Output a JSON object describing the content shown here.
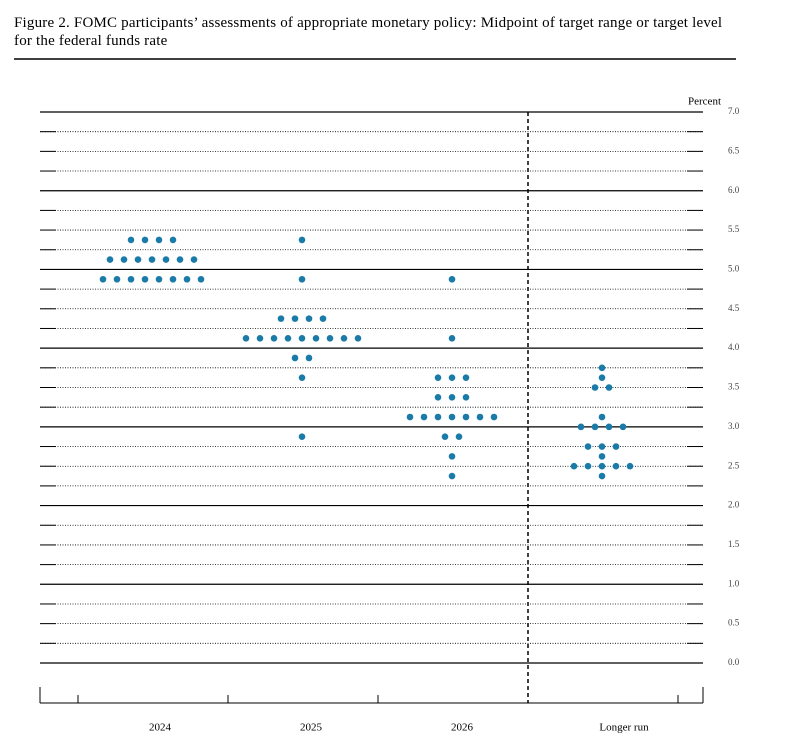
{
  "chart_data": {
    "type": "dotplot",
    "title": "Figure 2.  FOMC participants’ assessments of appropriate monetary policy: Midpoint of target range or target level for the federal funds rate",
    "y_label": "Percent",
    "categories": [
      "2024",
      "2025",
      "2026",
      "Longer run"
    ],
    "values": [
      [
        5.375,
        5.375,
        5.375,
        5.375,
        5.125,
        5.125,
        5.125,
        5.125,
        5.125,
        5.125,
        5.125,
        4.875,
        4.875,
        4.875,
        4.875,
        4.875,
        4.875,
        4.875,
        4.875
      ],
      [
        5.375,
        4.875,
        4.375,
        4.375,
        4.375,
        4.375,
        4.125,
        4.125,
        4.125,
        4.125,
        4.125,
        4.125,
        4.125,
        4.125,
        4.125,
        3.875,
        3.875,
        3.625,
        2.875
      ],
      [
        4.875,
        4.125,
        3.625,
        3.625,
        3.625,
        3.375,
        3.375,
        3.375,
        3.125,
        3.125,
        3.125,
        3.125,
        3.125,
        3.125,
        3.125,
        2.875,
        2.875,
        2.625,
        2.375
      ],
      [
        3.75,
        3.625,
        3.5,
        3.5,
        3.125,
        3.0,
        3.0,
        3.0,
        3.0,
        2.75,
        2.75,
        2.75,
        2.625,
        2.5,
        2.5,
        2.5,
        2.5,
        2.5,
        2.375
      ]
    ],
    "color": "#1a7aa8",
    "ylim": [
      0,
      7
    ],
    "yticks": [
      {
        "value": 0,
        "label": "0.0"
      },
      0.5,
      {
        "value": 1,
        "label": "1.0"
      },
      1.5,
      {
        "value": 2,
        "label": "2.0"
      },
      2.5,
      {
        "value": 3,
        "label": "3.0"
      },
      3.5,
      {
        "value": 4,
        "label": "4.0"
      },
      4.5,
      {
        "value": 5,
        "label": "5.0"
      },
      5.5,
      {
        "value": 6,
        "label": "6.0"
      },
      6.5,
      {
        "value": 7,
        "label": "7.0"
      }
    ],
    "grid": true
  }
}
